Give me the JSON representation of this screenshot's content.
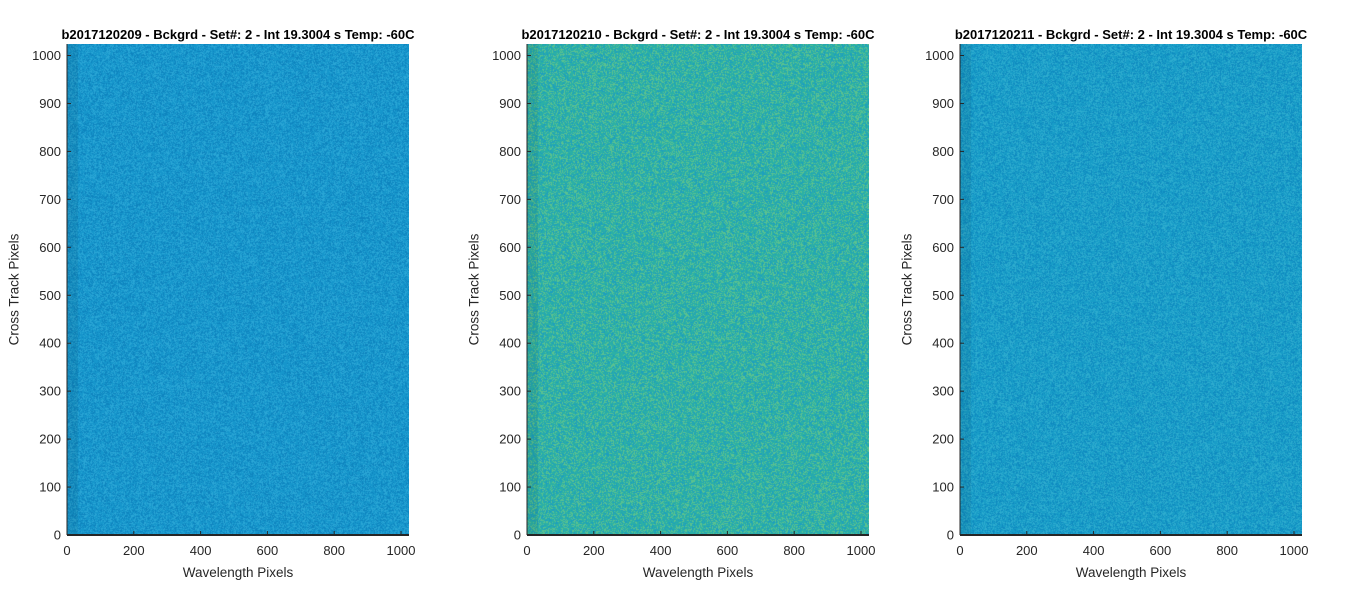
{
  "figure": {
    "background": "#ffffff"
  },
  "chart_data": [
    {
      "type": "heatmap",
      "title": "b2017120209 - Bckgrd - Set#: 2 - Int 19.3004 s Temp: -60C",
      "xlabel": "Wavelength Pixels",
      "ylabel": "Cross Track Pixels",
      "xlim": [
        0,
        1024
      ],
      "ylim": [
        0,
        1024
      ],
      "xticks": [
        0,
        200,
        400,
        600,
        800,
        1000
      ],
      "yticks": [
        0,
        100,
        200,
        300,
        400,
        500,
        600,
        700,
        800,
        900,
        1000
      ],
      "grid": false,
      "colors": {
        "base": "#1696cc",
        "noise_light": "#2aa6d6",
        "noise_dark": "#0e84bf"
      }
    },
    {
      "type": "heatmap",
      "title": "b2017120210 - Bckgrd - Set#: 2 - Int 19.3004 s Temp: -60C",
      "xlabel": "Wavelength Pixels",
      "ylabel": "Cross Track Pixels",
      "xlim": [
        0,
        1024
      ],
      "ylim": [
        0,
        1024
      ],
      "xticks": [
        0,
        200,
        400,
        600,
        800,
        1000
      ],
      "yticks": [
        0,
        100,
        200,
        300,
        400,
        500,
        600,
        700,
        800,
        900,
        1000
      ],
      "grid": false,
      "colors": {
        "base": "#2bb0a6",
        "noise_light": "#5cc28f",
        "noise_dark": "#1d9fbf"
      }
    },
    {
      "type": "heatmap",
      "title": "b2017120211 - Bckgrd - Set#: 2 - Int 19.3004 s Temp: -60C",
      "xlabel": "Wavelength Pixels",
      "ylabel": "Cross Track Pixels",
      "xlim": [
        0,
        1024
      ],
      "ylim": [
        0,
        1024
      ],
      "xticks": [
        0,
        200,
        400,
        600,
        800,
        1000
      ],
      "yticks": [
        0,
        100,
        200,
        300,
        400,
        500,
        600,
        700,
        800,
        900,
        1000
      ],
      "grid": false,
      "colors": {
        "base": "#189dc8",
        "noise_light": "#2eaccf",
        "noise_dark": "#0f8ac0"
      }
    }
  ]
}
